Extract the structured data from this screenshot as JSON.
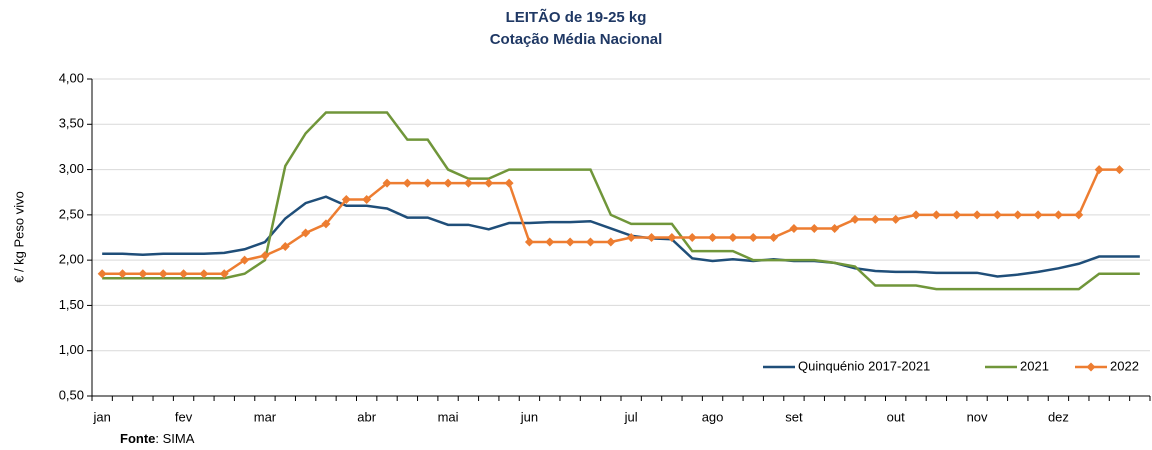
{
  "chart_data": {
    "type": "line",
    "title": "LEITÃO de 19-25 kg",
    "subtitle": "Cotação Média Nacional",
    "y_label": "€ / kg Peso vivo",
    "source_label": "Fonte",
    "source_text": ": SIMA",
    "categories": [
      "jan",
      null,
      null,
      null,
      "fev",
      null,
      null,
      null,
      "mar",
      null,
      null,
      null,
      null,
      "abr",
      null,
      null,
      null,
      "mai",
      null,
      null,
      null,
      "jun",
      null,
      null,
      null,
      null,
      "jul",
      null,
      null,
      null,
      "ago",
      null,
      null,
      null,
      "set",
      null,
      null,
      null,
      null,
      "out",
      null,
      null,
      null,
      "nov",
      null,
      null,
      null,
      "dez",
      null,
      null,
      null,
      null
    ],
    "ylim": [
      0.5,
      4
    ],
    "yticks": [
      {
        "value": 0.5,
        "label": "0,50"
      },
      {
        "value": 1,
        "label": "1,00"
      },
      {
        "value": 1.5,
        "label": "1,50"
      },
      {
        "value": 2,
        "label": "2,00"
      },
      {
        "value": 2.5,
        "label": "2,50"
      },
      {
        "value": 3,
        "label": "3,00"
      },
      {
        "value": 3.5,
        "label": "3,50"
      },
      {
        "value": 4,
        "label": "4,00"
      }
    ],
    "grid": true,
    "legend": "bottom-right",
    "series": [
      {
        "name": "Quinquénio 2017-2021",
        "color": "#1f4e79",
        "values": [
          2.07,
          2.07,
          2.06,
          2.07,
          2.07,
          2.07,
          2.08,
          2.12,
          2.2,
          2.46,
          2.63,
          2.7,
          2.6,
          2.6,
          2.57,
          2.47,
          2.47,
          2.39,
          2.39,
          2.34,
          2.41,
          2.41,
          2.42,
          2.42,
          2.43,
          2.35,
          2.27,
          2.24,
          2.23,
          2.02,
          1.99,
          2.01,
          1.99,
          2.01,
          1.99,
          1.99,
          1.97,
          1.91,
          1.88,
          1.87,
          1.87,
          1.86,
          1.86,
          1.86,
          1.82,
          1.84,
          1.87,
          1.91,
          1.96,
          2.04,
          2.04,
          2.04
        ]
      },
      {
        "name": "2021",
        "color": "#70963a",
        "values": [
          1.8,
          1.8,
          1.8,
          1.8,
          1.8,
          1.8,
          1.8,
          1.85,
          2.0,
          3.04,
          3.4,
          3.63,
          3.63,
          3.63,
          3.63,
          3.33,
          3.33,
          3.0,
          2.9,
          2.9,
          3.0,
          3.0,
          3.0,
          3.0,
          3.0,
          2.5,
          2.4,
          2.4,
          2.4,
          2.1,
          2.1,
          2.1,
          2.0,
          2.0,
          2.0,
          2.0,
          1.97,
          1.93,
          1.72,
          1.72,
          1.72,
          1.68,
          1.68,
          1.68,
          1.68,
          1.68,
          1.68,
          1.68,
          1.68,
          1.85,
          1.85,
          1.85
        ]
      },
      {
        "name": "2022",
        "color": "#ed7d31",
        "marker": "diamond",
        "values": [
          1.85,
          1.85,
          1.85,
          1.85,
          1.85,
          1.85,
          1.85,
          2.0,
          2.05,
          2.15,
          2.3,
          2.4,
          2.67,
          2.67,
          2.85,
          2.85,
          2.85,
          2.85,
          2.85,
          2.85,
          2.85,
          2.2,
          2.2,
          2.2,
          2.2,
          2.2,
          2.25,
          2.25,
          2.25,
          2.25,
          2.25,
          2.25,
          2.25,
          2.25,
          2.35,
          2.35,
          2.35,
          2.45,
          2.45,
          2.45,
          2.5,
          2.5,
          2.5,
          2.5,
          2.5,
          2.5,
          2.5,
          2.5,
          2.5,
          3.0,
          3.0,
          null
        ]
      }
    ]
  }
}
